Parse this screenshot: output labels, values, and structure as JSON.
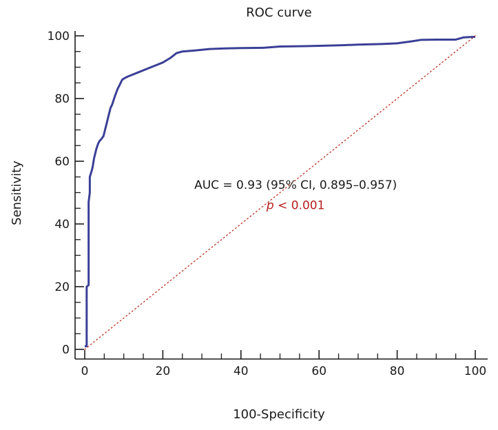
{
  "chart_data": {
    "type": "line",
    "title": "ROC curve",
    "xlabel": "100-Specificity",
    "ylabel": "Sensitivity",
    "xlim": [
      0,
      100
    ],
    "ylim": [
      0,
      100
    ],
    "xticks": [
      0,
      20,
      40,
      60,
      80,
      100
    ],
    "yticks": [
      0,
      20,
      40,
      60,
      80,
      100
    ],
    "grid": false,
    "series": [
      {
        "color": "#3a3f96",
        "style": "step",
        "x": [
          0,
          0.5,
          0.5,
          1.0,
          1.0,
          1.3,
          1.3,
          1.8,
          2.0,
          2.4,
          2.6,
          3.0,
          3.4,
          3.8,
          4.2,
          4.8,
          5.0,
          5.4,
          5.8,
          6.2,
          6.6,
          7.0,
          7.4,
          7.8,
          8.4,
          9.0,
          9.6,
          10.2,
          11.0,
          12.0,
          14.0,
          16.0,
          18.0,
          20.0,
          22.0,
          23.5,
          25.0,
          28.0,
          32.0,
          36.0,
          40.0,
          46.0,
          50.0,
          56.0,
          60.0,
          66.0,
          70.0,
          76.0,
          80.0,
          84.0,
          86.0,
          90.0,
          95.0,
          97.0,
          100.0
        ],
        "y": [
          1,
          1,
          20,
          20.5,
          47,
          50,
          55,
          57,
          58,
          61,
          62,
          64,
          65.5,
          66.5,
          67,
          68,
          69,
          71,
          73,
          75,
          77,
          78,
          79.5,
          81,
          83,
          84.5,
          86,
          86.5,
          87,
          87.5,
          88.5,
          89.5,
          90.5,
          91.5,
          93,
          94.5,
          95,
          95.3,
          95.8,
          96,
          96.1,
          96.2,
          96.6,
          96.7,
          96.8,
          97.0,
          97.2,
          97.4,
          97.6,
          98.3,
          98.7,
          98.8,
          98.8,
          99.5,
          99.7
        ]
      },
      {
        "color": "#c0392b",
        "style": "dotted",
        "x": [
          0,
          100
        ],
        "y": [
          0,
          100
        ]
      }
    ],
    "annotations": [
      {
        "text": "AUC = 0.93 (95% CI, 0.895–0.957)",
        "x": 54,
        "y": 52.5,
        "color": "#1a1a1a"
      },
      {
        "text_italic": "p",
        "text": " < 0.001",
        "x": 54,
        "y": 46,
        "color": "#b71c1c"
      }
    ]
  }
}
